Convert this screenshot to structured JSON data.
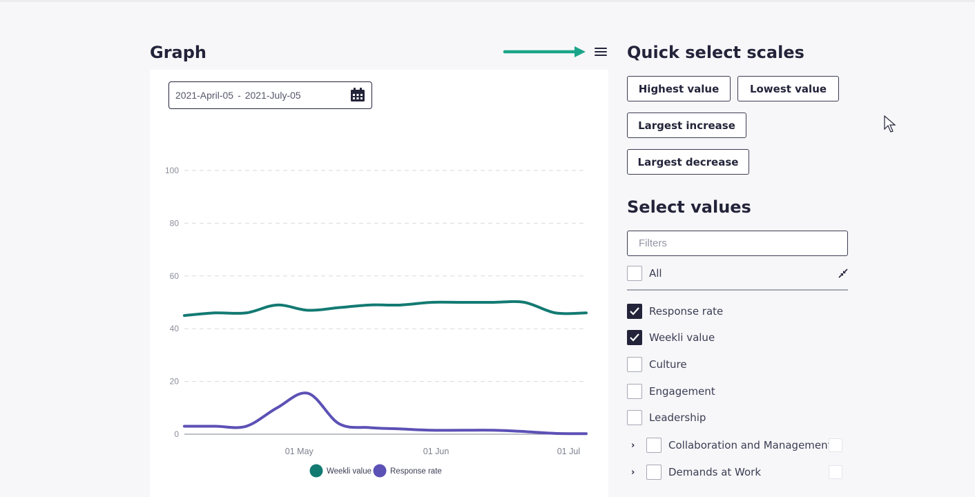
{
  "graph": {
    "title": "Graph",
    "date_start": "2021-April-05",
    "date_separator": "-",
    "date_end": "2021-July-05",
    "icons": {
      "menu": "hamburger-menu-icon",
      "calendar": "calendar-icon",
      "arrow": "arrow-right-icon"
    },
    "accent_arrow_color": "#1aa589"
  },
  "chart_data": {
    "type": "line",
    "x": [
      "2021-04-05",
      "2021-04-12",
      "2021-04-19",
      "2021-04-26",
      "2021-05-03",
      "2021-05-10",
      "2021-05-17",
      "2021-05-24",
      "2021-05-31",
      "2021-06-07",
      "2021-06-14",
      "2021-06-21",
      "2021-06-28",
      "2021-07-05"
    ],
    "series": [
      {
        "name": "Weekli value",
        "color": "#137a72",
        "values": [
          45,
          46,
          46,
          49,
          47,
          48,
          49,
          49,
          50,
          50,
          50,
          50,
          46,
          46
        ]
      },
      {
        "name": "Response rate",
        "color": "#5c51b5",
        "values": [
          3,
          3,
          3,
          10,
          15.5,
          4,
          2.5,
          2,
          1.5,
          1.5,
          1.5,
          1,
          0.3,
          0.2
        ]
      }
    ],
    "ylim": [
      0,
      100
    ],
    "yticks": [
      0,
      20,
      40,
      60,
      80,
      100
    ],
    "xticks": [
      "01 May",
      "01 Jun",
      "01 Jul"
    ],
    "xtick_dates": [
      "2021-05-01",
      "2021-06-01",
      "2021-07-01"
    ],
    "x_range": [
      "2021-04-05",
      "2021-07-05"
    ],
    "grid": true,
    "legend_position": "bottom",
    "title": "",
    "xlabel": "",
    "ylabel": ""
  },
  "quick_select": {
    "title": "Quick select scales",
    "buttons": [
      "Highest value",
      "Lowest value",
      "Largest increase",
      "Largest decrease"
    ]
  },
  "select_values": {
    "title": "Select values",
    "filter_placeholder": "Filters",
    "all_label": "All",
    "items": [
      {
        "label": "Response rate",
        "checked": true
      },
      {
        "label": "Weekli value",
        "checked": true
      },
      {
        "label": "Culture",
        "checked": false
      },
      {
        "label": "Engagement",
        "checked": false
      },
      {
        "label": "Leadership",
        "checked": false
      },
      {
        "label": "Collaboration and Management",
        "checked": false,
        "expandable": true
      },
      {
        "label": "Demands at Work",
        "checked": false,
        "expandable": true
      }
    ]
  }
}
